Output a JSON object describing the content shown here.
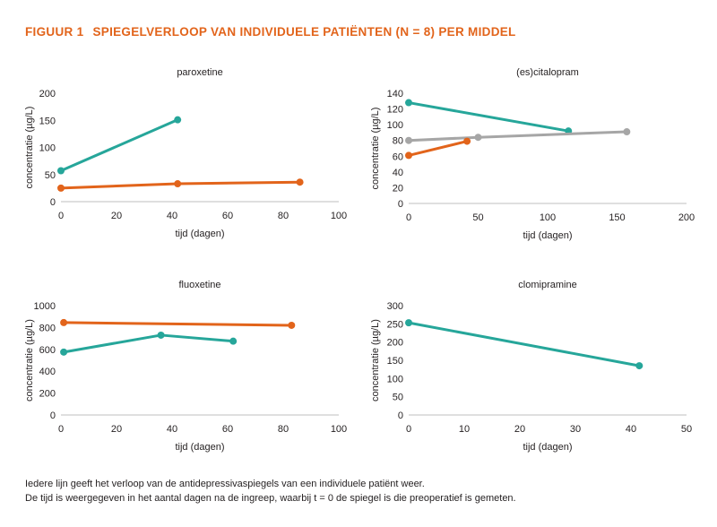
{
  "figure": {
    "label": "FIGUUR 1",
    "title": "SPIEGELVERLOOP VAN INDIVIDUELE PATIËNTEN (N = 8) PER MIDDEL",
    "footnote_lines": [
      "Iedere lijn geeft het verloop van de antidepressivaspiegels van een individuele patiënt weer.",
      "De tijd is weergegeven in het aantal dagen na de ingreep, waarbij t = 0 de spiegel is die preoperatief is gemeten."
    ]
  },
  "colors": {
    "teal": "#26a69a",
    "orange": "#e2641b",
    "gray": "#a6a6a6",
    "axis": "#bfbfbf"
  },
  "chart_data": [
    {
      "type": "line",
      "title": "paroxetine",
      "xlabel": "tijd (dagen)",
      "ylabel": "concentratie (µg/L)",
      "xlim": [
        0,
        100
      ],
      "xticks": [
        0,
        20,
        40,
        60,
        80,
        100
      ],
      "ylim": [
        0,
        200
      ],
      "yticks": [
        0,
        50,
        100,
        150,
        200
      ],
      "grid": false,
      "series": [
        {
          "color": "#26a69a",
          "x": [
            0,
            42
          ],
          "y": [
            57,
            151
          ]
        },
        {
          "color": "#e2641b",
          "x": [
            0,
            42,
            86
          ],
          "y": [
            25,
            33,
            36
          ]
        }
      ]
    },
    {
      "type": "line",
      "title": "(es)citalopram",
      "xlabel": "tijd (dagen)",
      "ylabel": "concentratie (µg/L)",
      "xlim": [
        0,
        200
      ],
      "xticks": [
        0,
        50,
        100,
        150,
        200
      ],
      "ylim": [
        0,
        140
      ],
      "yticks": [
        0,
        20,
        40,
        60,
        80,
        100,
        120,
        140
      ],
      "grid": false,
      "series": [
        {
          "color": "#26a69a",
          "x": [
            0,
            115
          ],
          "y": [
            128,
            92
          ]
        },
        {
          "color": "#a6a6a6",
          "x": [
            0,
            50,
            157
          ],
          "y": [
            80,
            84,
            91
          ]
        },
        {
          "color": "#e2641b",
          "x": [
            0,
            42
          ],
          "y": [
            61,
            79
          ]
        }
      ]
    },
    {
      "type": "line",
      "title": "fluoxetine",
      "xlabel": "tijd (dagen)",
      "ylabel": "concentratie (µg/L)",
      "xlim": [
        0,
        100
      ],
      "xticks": [
        0,
        20,
        40,
        60,
        80,
        100
      ],
      "ylim": [
        0,
        1000
      ],
      "yticks": [
        0,
        200,
        400,
        600,
        800,
        1000
      ],
      "grid": false,
      "series": [
        {
          "color": "#e2641b",
          "x": [
            1,
            83
          ],
          "y": [
            845,
            820
          ]
        },
        {
          "color": "#26a69a",
          "x": [
            1,
            36,
            62
          ],
          "y": [
            575,
            730,
            675
          ]
        }
      ]
    },
    {
      "type": "line",
      "title": "clomipramine",
      "xlabel": "tijd (dagen)",
      "ylabel": "concentratie (µg/L)",
      "xlim": [
        0,
        50
      ],
      "xticks": [
        0,
        10,
        20,
        30,
        40,
        50
      ],
      "ylim": [
        0,
        300
      ],
      "yticks": [
        0,
        50,
        100,
        150,
        200,
        250,
        300
      ],
      "grid": false,
      "series": [
        {
          "color": "#26a69a",
          "x": [
            0,
            41.5
          ],
          "y": [
            253,
            135
          ]
        }
      ]
    }
  ]
}
